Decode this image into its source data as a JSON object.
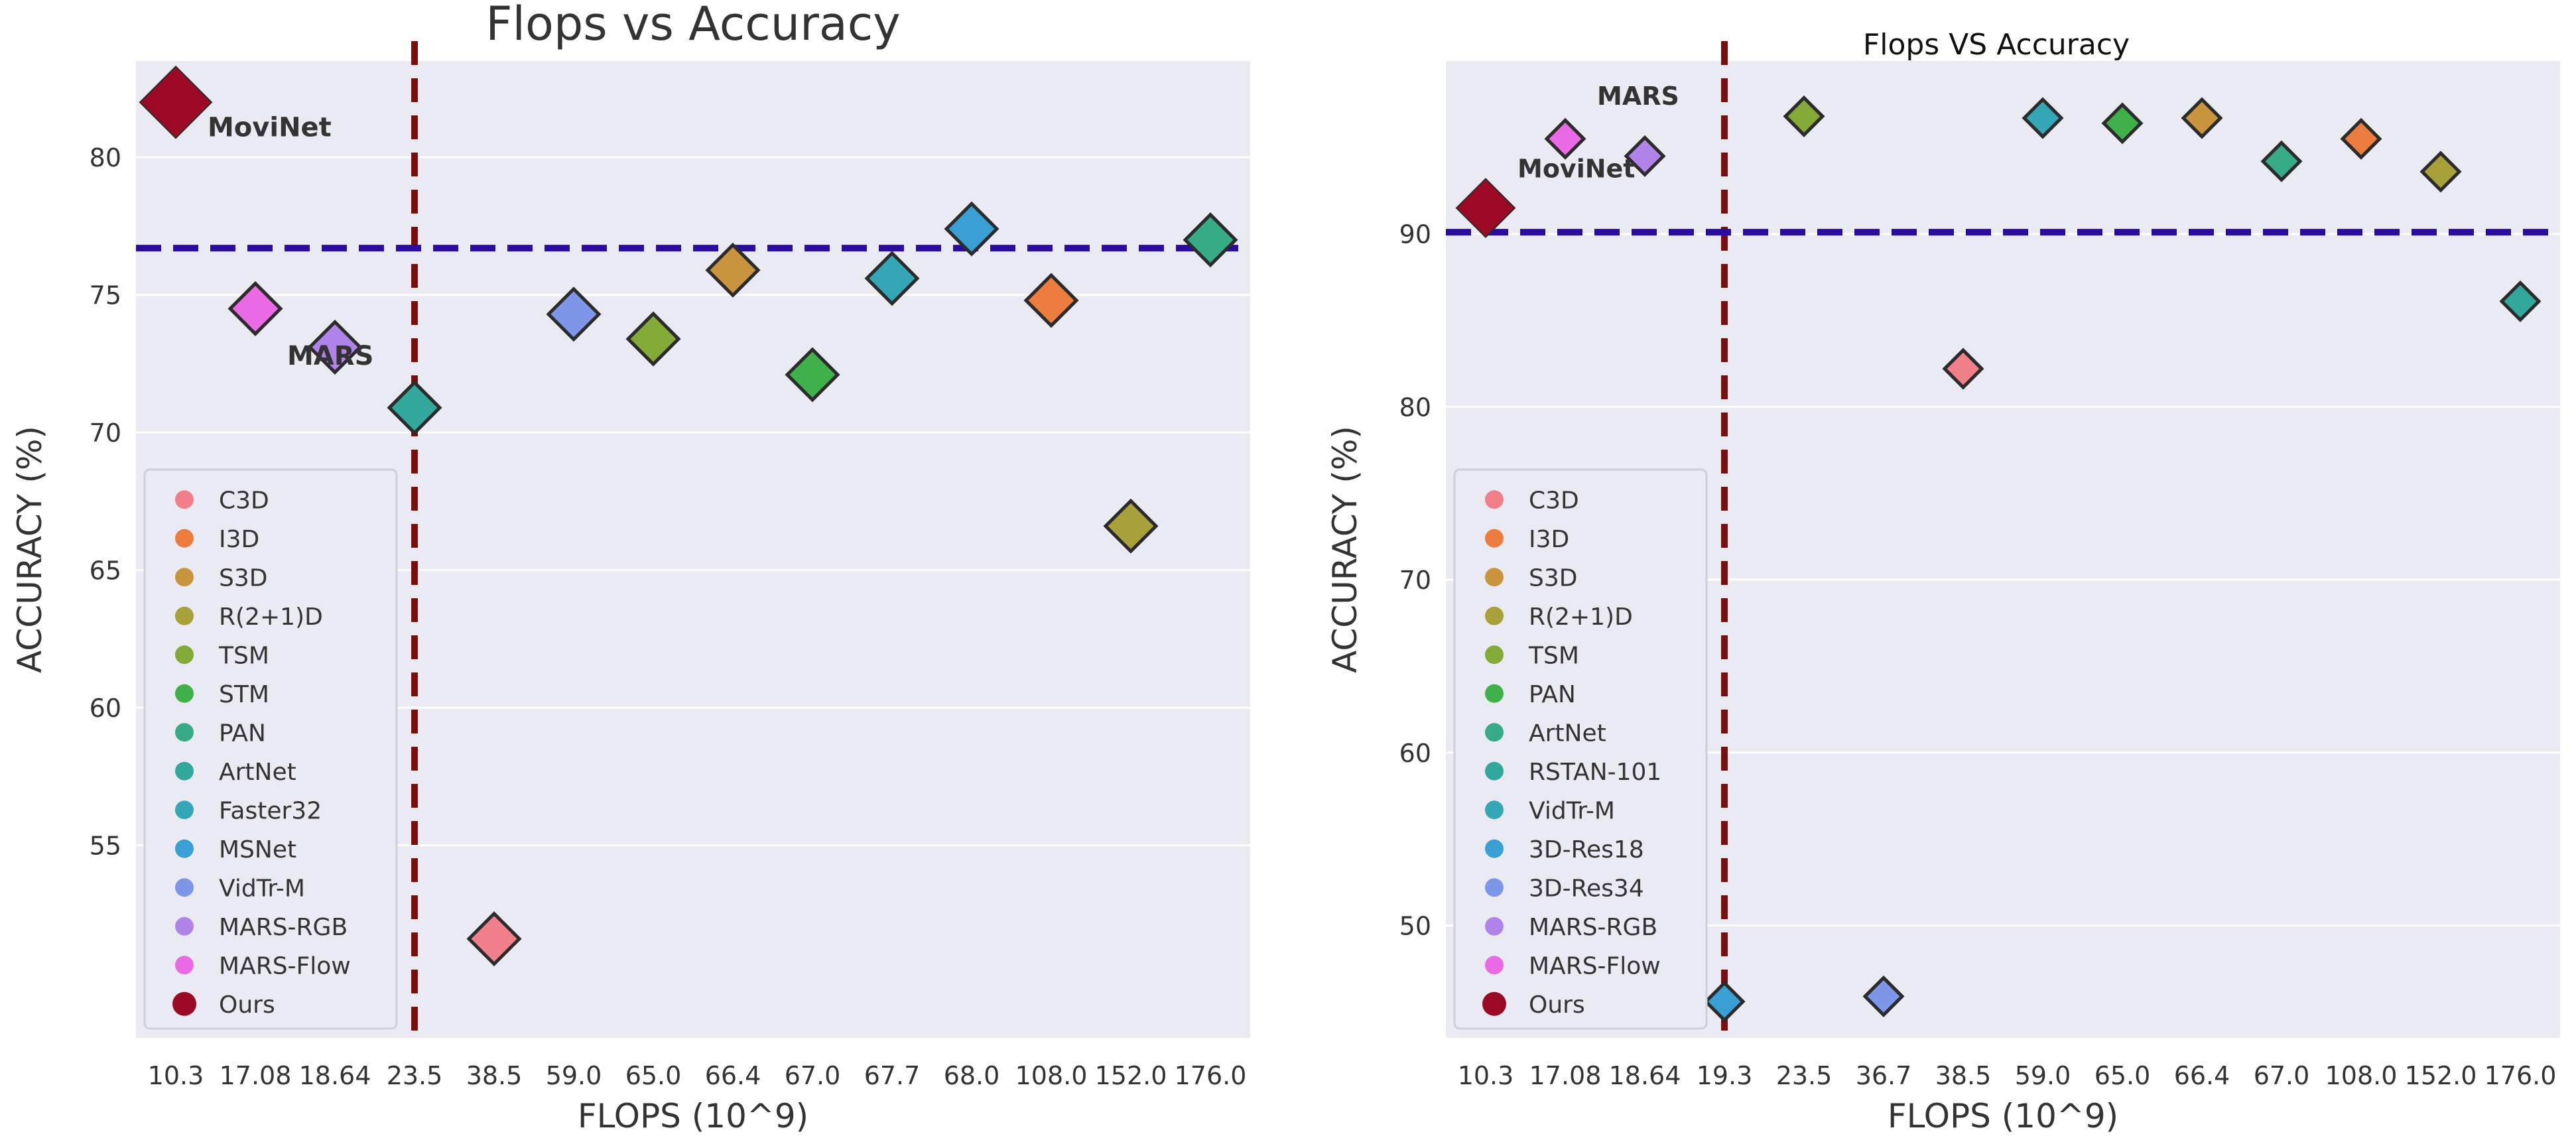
{
  "chart_data": [
    {
      "type": "scatter",
      "title": "Flops vs Accuracy",
      "xlabel": "FLOPS (10^9)",
      "ylabel": "ACCURACY (%)",
      "categories": [
        "10.3",
        "17.08",
        "18.64",
        "23.5",
        "38.5",
        "59.0",
        "65.0",
        "66.4",
        "67.0",
        "67.7",
        "68.0",
        "108.0",
        "152.0",
        "176.0"
      ],
      "ylim": [
        48,
        83.5
      ],
      "yticks": [
        55,
        60,
        65,
        70,
        75,
        80
      ],
      "grid": true,
      "reference_lines": {
        "x_category": "23.5",
        "y_value": 76.7
      },
      "legend_position": "lower-left",
      "legend": [
        {
          "name": "C3D",
          "color": "#f07f89"
        },
        {
          "name": "I3D",
          "color": "#ec7c3d"
        },
        {
          "name": "S3D",
          "color": "#c9943e"
        },
        {
          "name": "R(2+1)D",
          "color": "#a8a038"
        },
        {
          "name": "TSM",
          "color": "#83a936"
        },
        {
          "name": "STM",
          "color": "#3fb04a"
        },
        {
          "name": "PAN",
          "color": "#36ab86"
        },
        {
          "name": "ArtNet",
          "color": "#32a89d"
        },
        {
          "name": "Faster32",
          "color": "#35a6b5"
        },
        {
          "name": "MSNet",
          "color": "#3a9fd3"
        },
        {
          "name": "VidTr-M",
          "color": "#7e96e8"
        },
        {
          "name": "MARS-RGB",
          "color": "#b083e8"
        },
        {
          "name": "MARS-Flow",
          "color": "#e96ae4"
        },
        {
          "name": "Ours",
          "color": "#9b0a25"
        }
      ],
      "points": [
        {
          "name": "Ours",
          "x": "10.3",
          "y": 82.0,
          "color": "#9b0a25"
        },
        {
          "name": "MARS-Flow",
          "x": "17.08",
          "y": 74.5,
          "color": "#e96ae4"
        },
        {
          "name": "MARS-RGB",
          "x": "18.64",
          "y": 73.1,
          "color": "#b083e8"
        },
        {
          "name": "ArtNet",
          "x": "23.5",
          "y": 70.9,
          "color": "#32a89d"
        },
        {
          "name": "C3D",
          "x": "38.5",
          "y": 51.6,
          "color": "#f07f89"
        },
        {
          "name": "VidTr-M",
          "x": "59.0",
          "y": 74.3,
          "color": "#7e96e8"
        },
        {
          "name": "TSM",
          "x": "65.0",
          "y": 73.4,
          "color": "#83a936"
        },
        {
          "name": "S3D",
          "x": "66.4",
          "y": 75.9,
          "color": "#c9943e"
        },
        {
          "name": "STM",
          "x": "67.0",
          "y": 72.1,
          "color": "#3fb04a"
        },
        {
          "name": "Faster32",
          "x": "67.7",
          "y": 75.6,
          "color": "#35a6b5"
        },
        {
          "name": "MSNet",
          "x": "68.0",
          "y": 77.4,
          "color": "#3a9fd3"
        },
        {
          "name": "I3D",
          "x": "108.0",
          "y": 74.8,
          "color": "#ec7c3d"
        },
        {
          "name": "R(2+1)D",
          "x": "152.0",
          "y": 66.6,
          "color": "#a8a038"
        },
        {
          "name": "PAN",
          "x": "176.0",
          "y": 77.0,
          "color": "#36ab86"
        }
      ],
      "annotations": [
        {
          "text": "MoviNet",
          "x": "10.3",
          "y": 81.1
        },
        {
          "text": "MARS",
          "x": "17.08",
          "y": 72.8
        }
      ]
    },
    {
      "type": "scatter",
      "title": "Flops VS Accuracy",
      "xlabel": "FLOPS (10^9)",
      "ylabel": "ACCURACY (%)",
      "categories": [
        "10.3",
        "17.08",
        "18.64",
        "19.3",
        "23.5",
        "36.7",
        "38.5",
        "59.0",
        "65.0",
        "66.4",
        "67.0",
        "108.0",
        "152.0",
        "176.0"
      ],
      "ylim": [
        43.5,
        100
      ],
      "yticks": [
        50,
        60,
        70,
        80,
        90
      ],
      "grid": true,
      "reference_lines": {
        "x_category": "19.3",
        "y_value": 90.1
      },
      "legend_position": "lower-left",
      "legend": [
        {
          "name": "C3D",
          "color": "#f07f89"
        },
        {
          "name": "I3D",
          "color": "#ec7c3d"
        },
        {
          "name": "S3D",
          "color": "#c9943e"
        },
        {
          "name": "R(2+1)D",
          "color": "#a8a038"
        },
        {
          "name": "TSM",
          "color": "#83a936"
        },
        {
          "name": "PAN",
          "color": "#3fb04a"
        },
        {
          "name": "ArtNet",
          "color": "#36ab86"
        },
        {
          "name": "RSTAN-101",
          "color": "#32a89d"
        },
        {
          "name": "VidTr-M",
          "color": "#35a6b5"
        },
        {
          "name": "3D-Res18",
          "color": "#3a9fd3"
        },
        {
          "name": "3D-Res34",
          "color": "#7e96e8"
        },
        {
          "name": "MARS-RGB",
          "color": "#b083e8"
        },
        {
          "name": "MARS-Flow",
          "color": "#e96ae4"
        },
        {
          "name": "Ours",
          "color": "#9b0a25"
        }
      ],
      "points": [
        {
          "name": "Ours",
          "x": "10.3",
          "y": 91.5,
          "color": "#9b0a25"
        },
        {
          "name": "MARS-Flow",
          "x": "17.08",
          "y": 95.5,
          "color": "#e96ae4"
        },
        {
          "name": "MARS-RGB",
          "x": "18.64",
          "y": 94.5,
          "color": "#b083e8"
        },
        {
          "name": "3D-Res18",
          "x": "19.3",
          "y": 45.6,
          "color": "#3a9fd3"
        },
        {
          "name": "TSM",
          "x": "23.5",
          "y": 96.8,
          "color": "#83a936"
        },
        {
          "name": "3D-Res34",
          "x": "36.7",
          "y": 45.9,
          "color": "#7e96e8"
        },
        {
          "name": "C3D",
          "x": "38.5",
          "y": 82.2,
          "color": "#f07f89"
        },
        {
          "name": "VidTr-M",
          "x": "59.0",
          "y": 96.7,
          "color": "#35a6b5"
        },
        {
          "name": "PAN",
          "x": "65.0",
          "y": 96.4,
          "color": "#3fb04a"
        },
        {
          "name": "S3D",
          "x": "66.4",
          "y": 96.7,
          "color": "#c9943e"
        },
        {
          "name": "ArtNet",
          "x": "67.0",
          "y": 94.2,
          "color": "#36ab86"
        },
        {
          "name": "I3D",
          "x": "108.0",
          "y": 95.5,
          "color": "#ec7c3d"
        },
        {
          "name": "R(2+1)D",
          "x": "152.0",
          "y": 93.6,
          "color": "#a8a038"
        },
        {
          "name": "RSTAN-101",
          "x": "176.0",
          "y": 86.1,
          "color": "#32a89d"
        }
      ],
      "annotations": [
        {
          "text": "MoviNet",
          "x": "10.3",
          "y": 93.8
        },
        {
          "text": "MARS",
          "x": "17.08",
          "y": 98.0
        }
      ]
    }
  ]
}
